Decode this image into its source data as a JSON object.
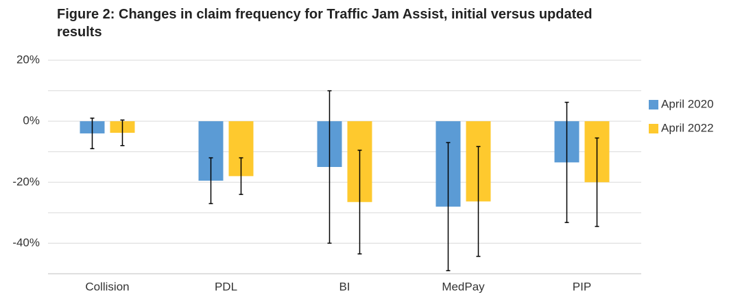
{
  "chart_data": {
    "type": "bar",
    "title": "Figure 2: Changes in claim frequency for Traffic Jam Assist, initial versus updated results",
    "categories": [
      "Collision",
      "PDL",
      "BI",
      "MedPay",
      "PIP"
    ],
    "series": [
      {
        "name": "April 2020",
        "color": "#5b9bd5",
        "values": [
          -4,
          -19.5,
          -15,
          -28,
          -13.5
        ],
        "errors": [
          5,
          7.5,
          25,
          21,
          19.7
        ]
      },
      {
        "name": "April 2022",
        "color": "#fec92e",
        "values": [
          -3.8,
          -18,
          -26.5,
          -26.3,
          -20
        ],
        "errors": [
          4.2,
          6,
          17,
          18,
          14.5
        ]
      }
    ],
    "ylim": [
      -50,
      20
    ],
    "yticks": [
      {
        "value": 20,
        "label": "20%"
      },
      {
        "value": 0,
        "label": "0%"
      },
      {
        "value": -20,
        "label": "-20%"
      },
      {
        "value": -40,
        "label": "-40%"
      }
    ],
    "grid": true,
    "legend": "right"
  }
}
